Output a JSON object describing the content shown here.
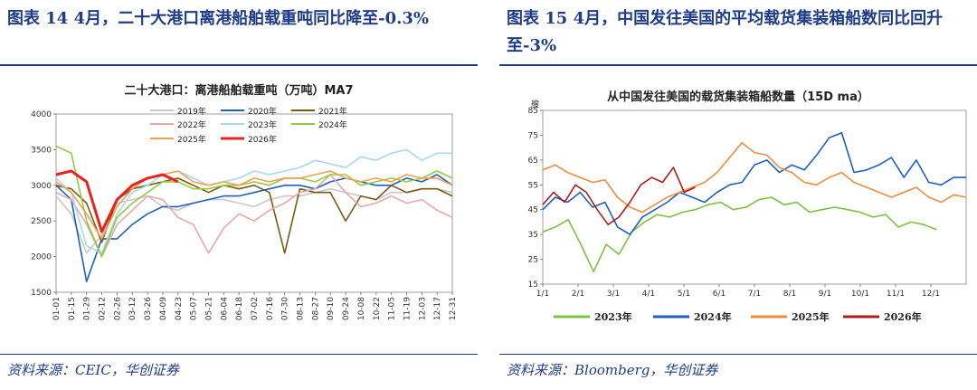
{
  "left": {
    "figure_title": "图表 14   4月，二十大港口离港船舶载重吨同比降至-0.3%",
    "source": "资料来源：CEIC，华创证券"
  },
  "right": {
    "figure_title": "图表 15   4月，中国发往美国的平均载货集装箱船数同比回升至-3%",
    "source": "资料来源：Bloomberg，华创证券"
  },
  "chart_data": [
    {
      "type": "line",
      "title": "二十大港口：离港船舶载重吨（万吨）MA7",
      "ylim": [
        1500,
        4000
      ],
      "yticks": [
        1500,
        2000,
        2500,
        3000,
        3500,
        4000
      ],
      "xticks": [
        "01-01",
        "01-15",
        "01-29",
        "02-12",
        "02-26",
        "03-12",
        "03-26",
        "04-09",
        "04-23",
        "05-07",
        "05-21",
        "06-04",
        "06-18",
        "07-02",
        "07-16",
        "07-30",
        "08-13",
        "08-27",
        "09-10",
        "09-24",
        "10-08",
        "10-22",
        "11-05",
        "11-19",
        "12-03",
        "12-17",
        "12-31"
      ],
      "legend_position": "top",
      "series": [
        {
          "name": "2019年",
          "color": "#c8c8c8",
          "values": [
            2850,
            2600,
            2050,
            2300,
            2750,
            2800,
            2850,
            2700,
            2650,
            2750,
            2800,
            2800,
            2750,
            2700,
            2800,
            2850,
            2850,
            2900,
            2950,
            2900,
            2850,
            2800,
            2900,
            2900,
            2950,
            2950,
            2900
          ]
        },
        {
          "name": "2020年",
          "color": "#1f5fbf",
          "values": [
            3000,
            2800,
            1650,
            2250,
            2250,
            2450,
            2600,
            2700,
            2700,
            2750,
            2800,
            2850,
            2850,
            2900,
            2950,
            3000,
            3000,
            2950,
            3050,
            3100,
            3050,
            3000,
            3000,
            3100,
            3050,
            3150,
            3000
          ]
        },
        {
          "name": "2021年",
          "color": "#7a5a12",
          "values": [
            3000,
            2950,
            2750,
            2200,
            2800,
            2950,
            3000,
            3050,
            3100,
            3000,
            2900,
            3000,
            2950,
            3000,
            2900,
            2050,
            2950,
            2900,
            2900,
            2500,
            2850,
            2800,
            3000,
            2900,
            2950,
            2950,
            2850
          ]
        },
        {
          "name": "2022年",
          "color": "#e8a8a8",
          "values": [
            2900,
            2800,
            2450,
            2000,
            2450,
            2650,
            2850,
            2800,
            2550,
            2450,
            2050,
            2400,
            2600,
            2500,
            2650,
            2750,
            2900,
            2950,
            3150,
            2900,
            2700,
            2750,
            2850,
            2750,
            2800,
            2650,
            2550
          ]
        },
        {
          "name": "2023年",
          "color": "#a8d8ee",
          "values": [
            3100,
            2900,
            2150,
            2050,
            2600,
            2900,
            3000,
            3150,
            3200,
            3100,
            3000,
            3050,
            3100,
            3200,
            3150,
            3200,
            3250,
            3350,
            3300,
            3250,
            3400,
            3350,
            3450,
            3500,
            3350,
            3450,
            3450
          ]
        },
        {
          "name": "2024年",
          "color": "#8fce3e",
          "values": [
            3550,
            3450,
            2500,
            2000,
            2550,
            2750,
            2900,
            3050,
            3050,
            2950,
            2950,
            3000,
            3000,
            3050,
            3000,
            3100,
            3100,
            3050,
            3150,
            3150,
            3000,
            3050,
            3100,
            3050,
            3100,
            3200,
            3100
          ]
        },
        {
          "name": "2025年",
          "color": "#f0a050",
          "values": [
            3050,
            2900,
            2600,
            2250,
            2700,
            2950,
            3100,
            3150,
            3200,
            3050,
            3000,
            3050,
            3000,
            3100,
            3050,
            3100,
            3100,
            3150,
            3200,
            3100,
            3050,
            3100,
            3050,
            3150,
            3100,
            3100,
            3000
          ]
        },
        {
          "name": "2026年",
          "color": "#e8231c",
          "values": [
            3150,
            3200,
            3050,
            2350,
            2800,
            3000,
            3100,
            3150,
            3050
          ]
        }
      ]
    },
    {
      "type": "line",
      "title": "从中国发往美国的载货集装箱船数量（15D ma）",
      "ylabel": "艘",
      "ylim": [
        15,
        85
      ],
      "yticks": [
        15,
        25,
        35,
        45,
        55,
        65,
        75,
        85
      ],
      "xticks": [
        "1/1",
        "2/1",
        "3/1",
        "4/1",
        "5/1",
        "6/1",
        "7/1",
        "8/1",
        "9/1",
        "10/1",
        "11/1",
        "12/1"
      ],
      "legend_position": "bottom",
      "series": [
        {
          "name": "2023年",
          "color": "#7bc142",
          "values": [
            36,
            38,
            41,
            31,
            20,
            31,
            27,
            36,
            40,
            43,
            42,
            44,
            45,
            47,
            48,
            45,
            46,
            49,
            50,
            47,
            48,
            44,
            45,
            46,
            45,
            44,
            42,
            43,
            38,
            40,
            39,
            37
          ]
        },
        {
          "name": "2024年",
          "color": "#1f5fbf",
          "values": [
            45,
            50,
            48,
            52,
            46,
            48,
            38,
            35,
            42,
            45,
            48,
            52,
            50,
            48,
            52,
            55,
            56,
            63,
            65,
            60,
            63,
            61,
            67,
            74,
            76,
            60,
            61,
            63,
            66,
            58,
            65,
            56,
            55,
            58,
            58
          ]
        },
        {
          "name": "2025年",
          "color": "#f08c3c",
          "values": [
            61,
            63,
            60,
            58,
            56,
            57,
            50,
            46,
            44,
            47,
            50,
            52,
            54,
            56,
            60,
            66,
            72,
            68,
            67,
            62,
            60,
            56,
            55,
            58,
            60,
            56,
            54,
            52,
            50,
            52,
            54,
            50,
            48,
            51,
            50
          ]
        },
        {
          "name": "2026年",
          "color": "#b01c1c",
          "values": [
            47,
            52,
            48,
            55,
            52,
            45,
            39,
            42,
            48,
            55,
            58,
            56,
            62,
            52,
            54
          ]
        }
      ]
    }
  ]
}
